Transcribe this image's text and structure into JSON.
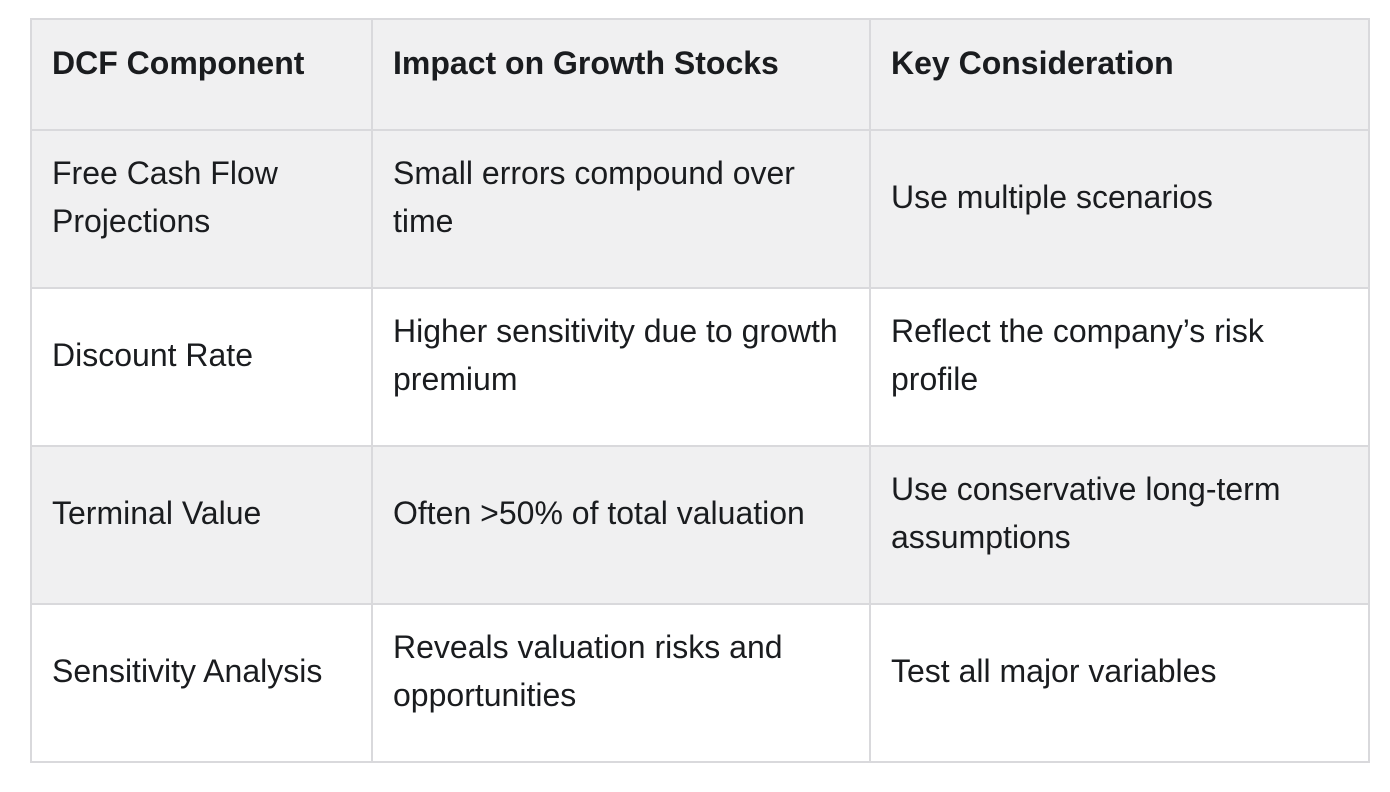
{
  "table": {
    "columns": [
      "DCF Component",
      "Impact on Growth Stocks",
      "Key Consideration"
    ],
    "rows": [
      {
        "component": "Free Cash Flow Projections",
        "impact": "Small errors compound over time",
        "consideration": "Use multiple scenarios"
      },
      {
        "component": "Discount Rate",
        "impact": "Higher sensitivity due to growth premium",
        "consideration": "Reflect the company’s risk profile"
      },
      {
        "component": "Terminal Value",
        "impact": "Often >50% of total valuation",
        "consideration": "Use conservative long-term assumptions"
      },
      {
        "component": "Sensitivity Analysis",
        "impact": "Reveals valuation risks and opportunities",
        "consideration": "Test all major variables"
      }
    ]
  },
  "colors": {
    "header_bg": "#f0f0f1",
    "row_alt_bg": "#f0f0f1",
    "row_bg": "#ffffff",
    "border": "#d9d9dc",
    "text": "#1a1c1f",
    "page_bg": "#ffffff"
  }
}
